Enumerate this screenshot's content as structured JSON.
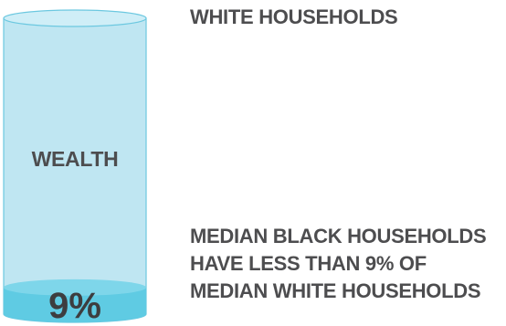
{
  "chart_data": {
    "type": "bar",
    "categories": [
      "WHITE HOUSEHOLDS",
      "MEDIAN BLACK HOUSEHOLDS"
    ],
    "values": [
      100,
      9
    ],
    "unit": "%",
    "ylim": [
      0,
      100
    ],
    "cylinder_label": "WEALTH",
    "value_label": "9%",
    "reference_label": "WHITE HOUSEHOLDS",
    "caption_lines": [
      "MEDIAN BLACK HOUSEHOLDS",
      "HAVE LESS THAN 9% OF",
      "MEDIAN WHITE HOUSEHOLDS"
    ],
    "colors": {
      "full_body": "#bfe6f2",
      "full_top": "#cfeef7",
      "outline": "#6cc8e0",
      "fill_body": "#5fcbe3",
      "fill_top": "#7ed6ea",
      "text": "#4d4d4f"
    }
  }
}
